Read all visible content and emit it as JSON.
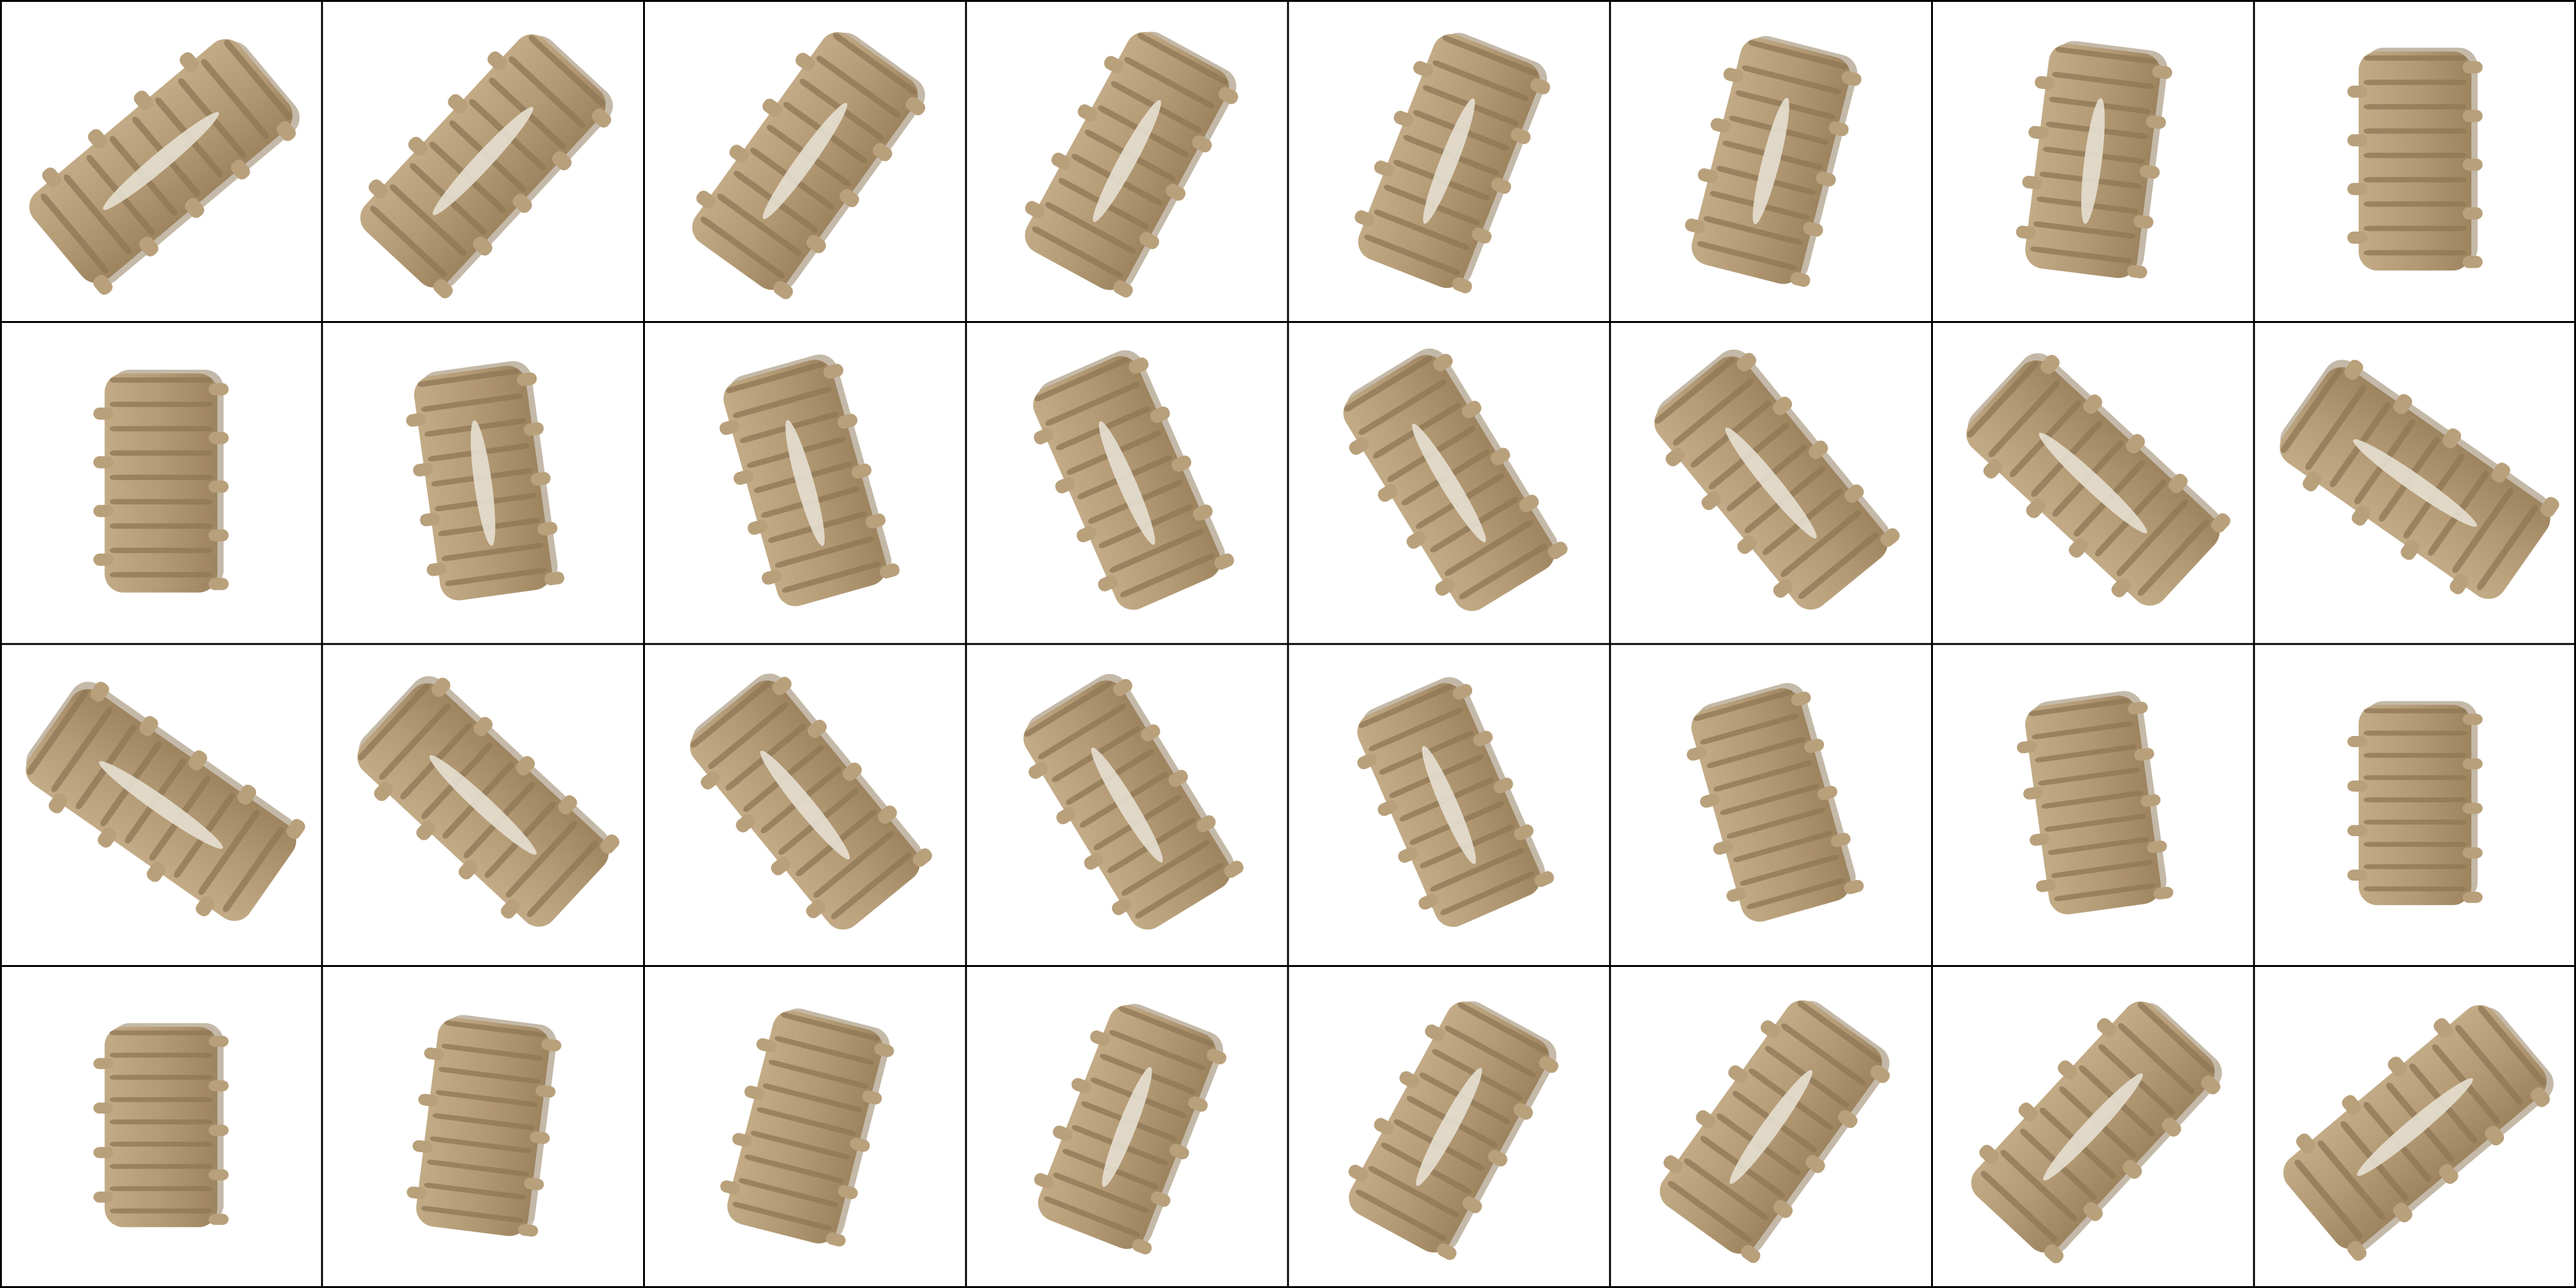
{
  "grid": {
    "rows": 4,
    "columns": 8
  }
}
